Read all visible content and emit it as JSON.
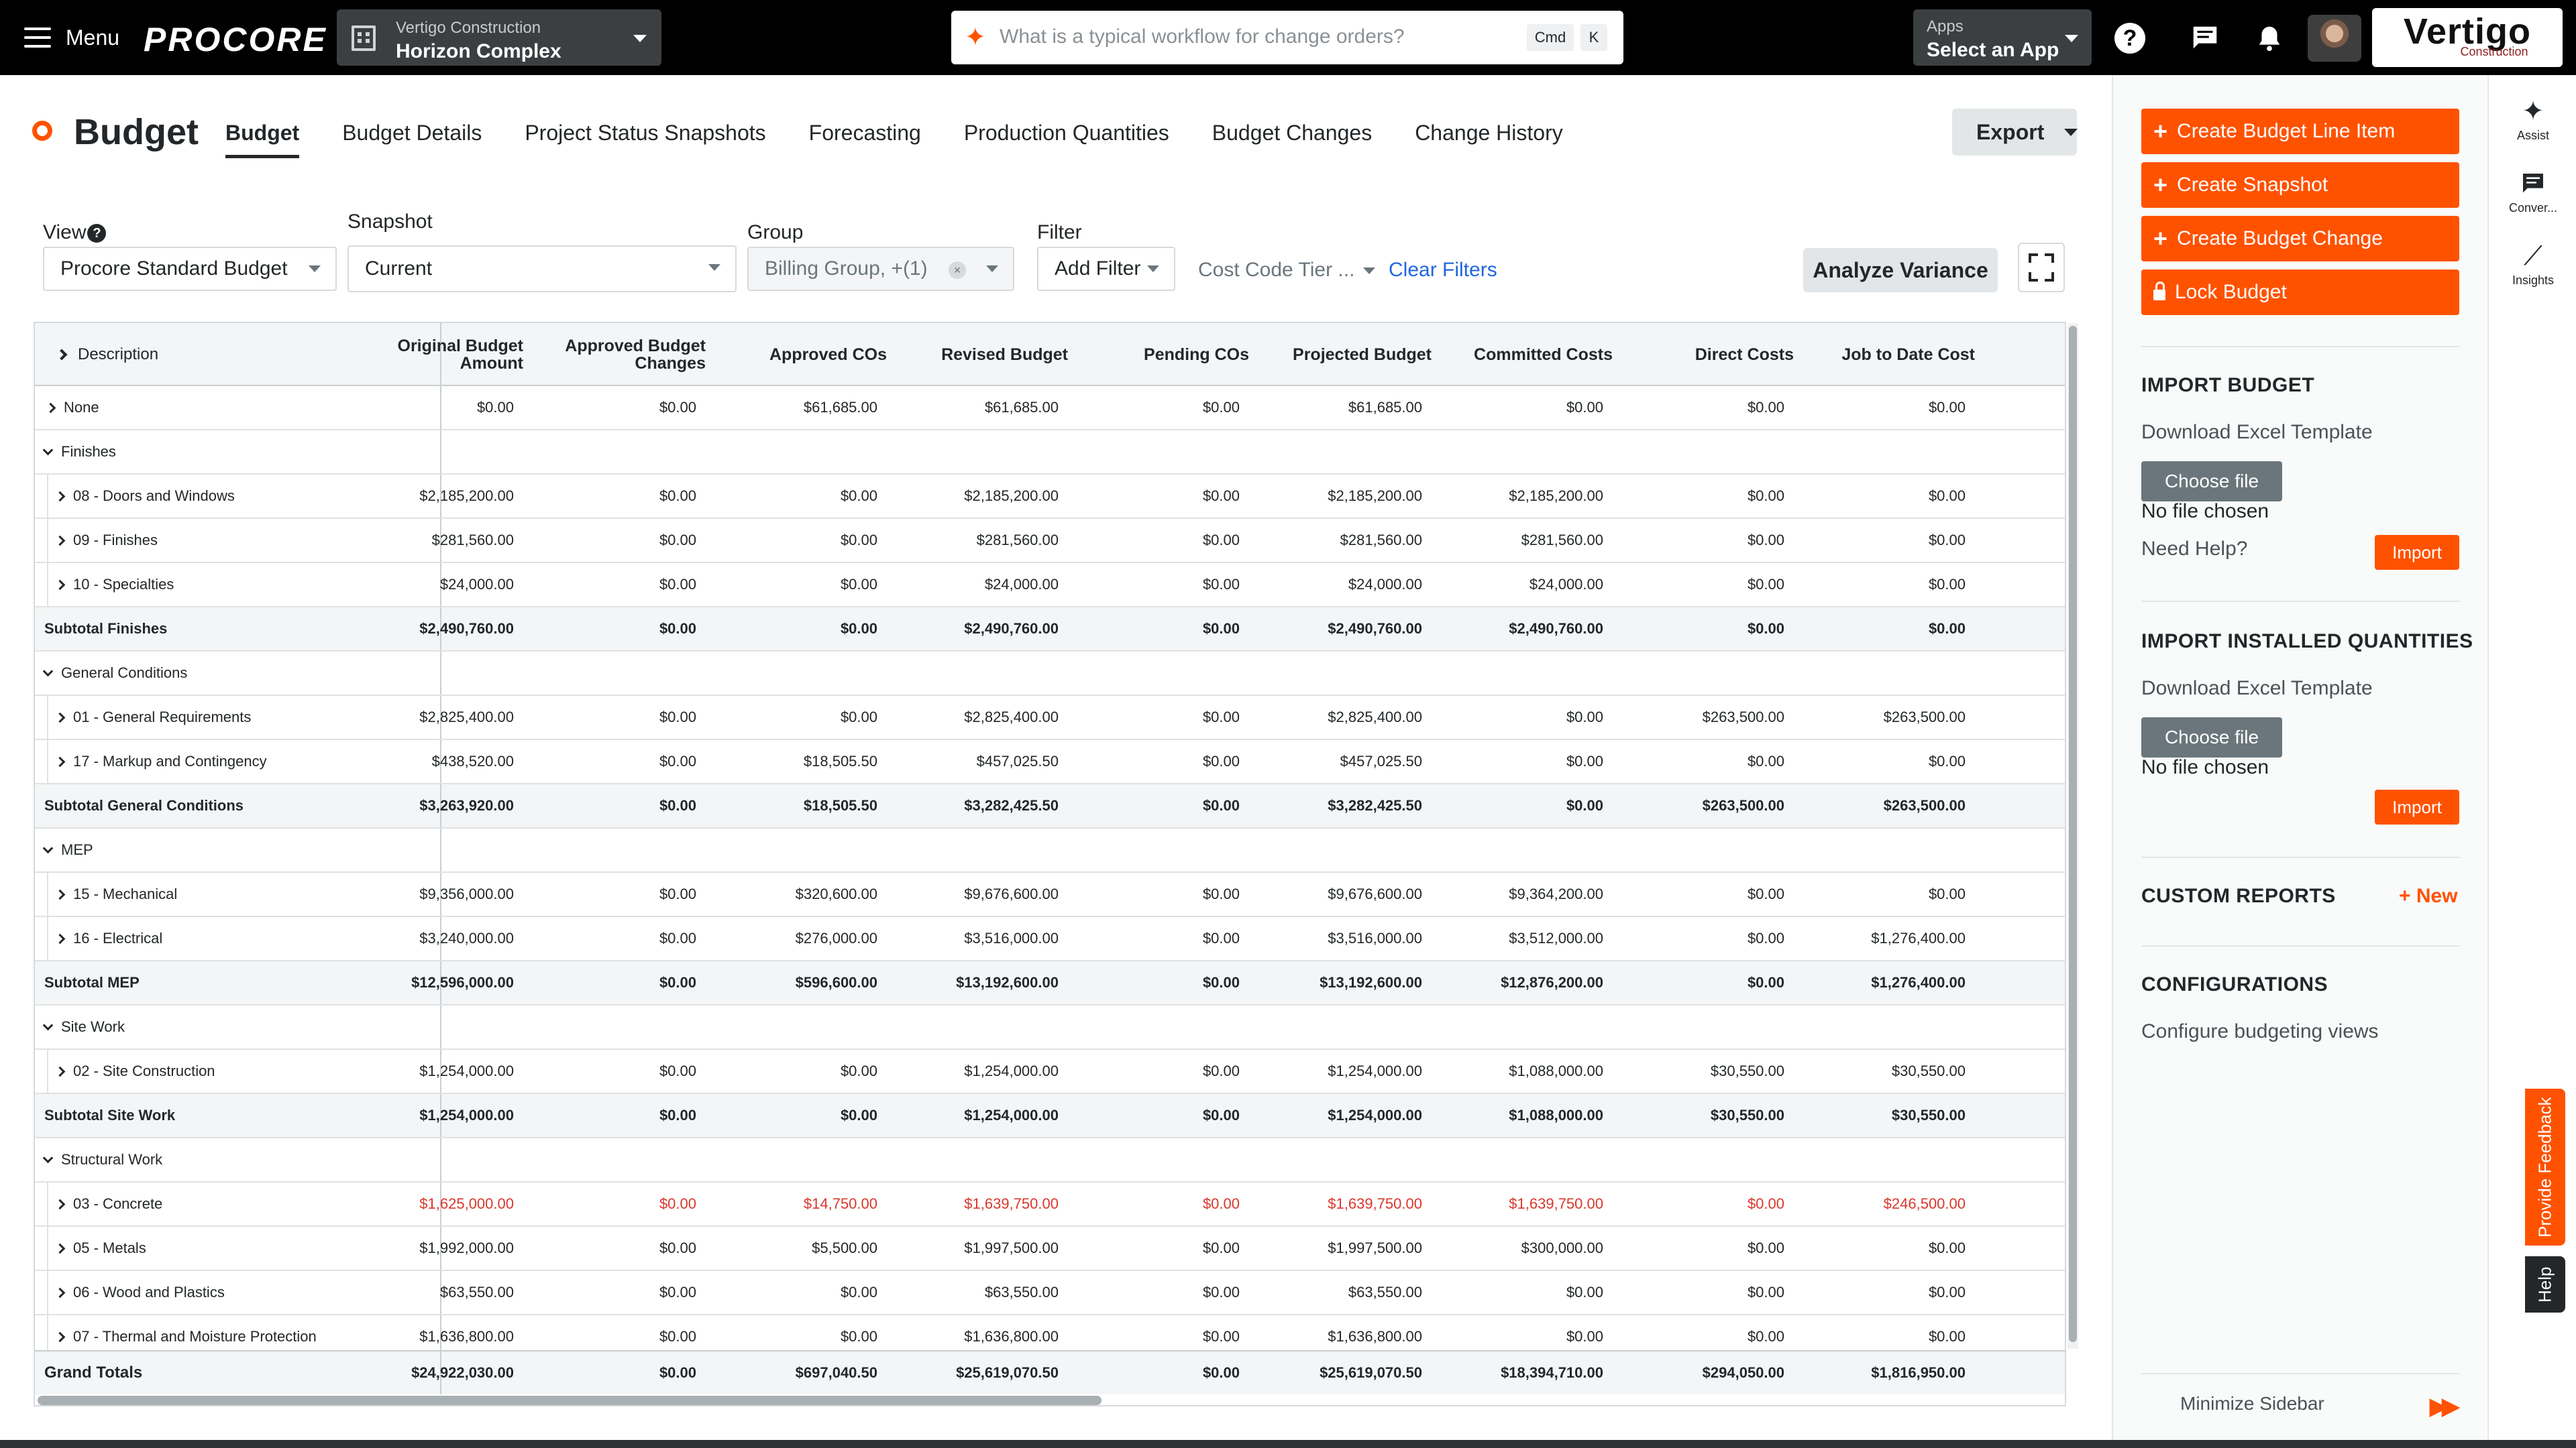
{
  "nav": {
    "menu_label": "Menu",
    "logo": "PROCORE",
    "company": "Vertigo Construction",
    "project": "Horizon Complex",
    "search_placeholder": "What is a typical workflow for change orders?",
    "kbd_cmd": "Cmd",
    "kbd_k": "K",
    "apps_label": "Apps",
    "apps_value": "Select an App",
    "company_logo_name": "Vertigo",
    "company_logo_sub": "Construction"
  },
  "header": {
    "title": "Budget",
    "tabs": [
      "Budget",
      "Budget Details",
      "Project Status Snapshots",
      "Forecasting",
      "Production Quantities",
      "Budget Changes",
      "Change History"
    ],
    "export_label": "Export"
  },
  "filters": {
    "view_label": "View",
    "view_value": "Procore Standard Budget",
    "snapshot_label": "Snapshot",
    "snapshot_value": "Current",
    "group_label": "Group",
    "group_value": "Billing Group, +(1)",
    "filter_label": "Filter",
    "filter_value": "Add Filter",
    "tier_value": "Cost Code Tier ...",
    "clear_filters": "Clear Filters",
    "analyze_label": "Analyze Variance"
  },
  "grid": {
    "desc_header": "Description",
    "columns": [
      {
        "l1": "Original Budget",
        "l2": "Amount"
      },
      {
        "l1": "Approved Budget",
        "l2": "Changes"
      },
      {
        "l1": "Approved COs",
        "l2": ""
      },
      {
        "l1": "Revised Budget",
        "l2": ""
      },
      {
        "l1": "Pending COs",
        "l2": ""
      },
      {
        "l1": "Projected Budget",
        "l2": ""
      },
      {
        "l1": "Committed Costs",
        "l2": ""
      },
      {
        "l1": "Direct Costs",
        "l2": ""
      },
      {
        "l1": "Job to Date Cost",
        "l2": ""
      }
    ],
    "rows": [
      {
        "type": "item-top",
        "label": "None",
        "values": [
          "$0.00",
          "$0.00",
          "$61,685.00",
          "$61,685.00",
          "$0.00",
          "$61,685.00",
          "$0.00",
          "$0.00",
          "$0.00"
        ]
      },
      {
        "type": "group",
        "label": "Finishes"
      },
      {
        "type": "item",
        "label": "08 - Doors and Windows",
        "values": [
          "$2,185,200.00",
          "$0.00",
          "$0.00",
          "$2,185,200.00",
          "$0.00",
          "$2,185,200.00",
          "$2,185,200.00",
          "$0.00",
          "$0.00"
        ]
      },
      {
        "type": "item",
        "label": "09 - Finishes",
        "values": [
          "$281,560.00",
          "$0.00",
          "$0.00",
          "$281,560.00",
          "$0.00",
          "$281,560.00",
          "$281,560.00",
          "$0.00",
          "$0.00"
        ]
      },
      {
        "type": "item",
        "label": "10 - Specialties",
        "values": [
          "$24,000.00",
          "$0.00",
          "$0.00",
          "$24,000.00",
          "$0.00",
          "$24,000.00",
          "$24,000.00",
          "$0.00",
          "$0.00"
        ]
      },
      {
        "type": "subtotal",
        "label": "Subtotal Finishes",
        "values": [
          "$2,490,760.00",
          "$0.00",
          "$0.00",
          "$2,490,760.00",
          "$0.00",
          "$2,490,760.00",
          "$2,490,760.00",
          "$0.00",
          "$0.00"
        ]
      },
      {
        "type": "group",
        "label": "General Conditions"
      },
      {
        "type": "item",
        "label": "01 - General Requirements",
        "values": [
          "$2,825,400.00",
          "$0.00",
          "$0.00",
          "$2,825,400.00",
          "$0.00",
          "$2,825,400.00",
          "$0.00",
          "$263,500.00",
          "$263,500.00"
        ]
      },
      {
        "type": "item",
        "label": "17 - Markup and Contingency",
        "values": [
          "$438,520.00",
          "$0.00",
          "$18,505.50",
          "$457,025.50",
          "$0.00",
          "$457,025.50",
          "$0.00",
          "$0.00",
          "$0.00"
        ]
      },
      {
        "type": "subtotal",
        "label": "Subtotal General Conditions",
        "values": [
          "$3,263,920.00",
          "$0.00",
          "$18,505.50",
          "$3,282,425.50",
          "$0.00",
          "$3,282,425.50",
          "$0.00",
          "$263,500.00",
          "$263,500.00"
        ]
      },
      {
        "type": "group",
        "label": "MEP"
      },
      {
        "type": "item",
        "label": "15 - Mechanical",
        "values": [
          "$9,356,000.00",
          "$0.00",
          "$320,600.00",
          "$9,676,600.00",
          "$0.00",
          "$9,676,600.00",
          "$9,364,200.00",
          "$0.00",
          "$0.00"
        ]
      },
      {
        "type": "item",
        "label": "16 - Electrical",
        "values": [
          "$3,240,000.00",
          "$0.00",
          "$276,000.00",
          "$3,516,000.00",
          "$0.00",
          "$3,516,000.00",
          "$3,512,000.00",
          "$0.00",
          "$1,276,400.00"
        ]
      },
      {
        "type": "subtotal",
        "label": "Subtotal MEP",
        "values": [
          "$12,596,000.00",
          "$0.00",
          "$596,600.00",
          "$13,192,600.00",
          "$0.00",
          "$13,192,600.00",
          "$12,876,200.00",
          "$0.00",
          "$1,276,400.00"
        ]
      },
      {
        "type": "group",
        "label": "Site Work"
      },
      {
        "type": "item",
        "label": "02 - Site Construction",
        "values": [
          "$1,254,000.00",
          "$0.00",
          "$0.00",
          "$1,254,000.00",
          "$0.00",
          "$1,254,000.00",
          "$1,088,000.00",
          "$30,550.00",
          "$30,550.00"
        ]
      },
      {
        "type": "subtotal",
        "label": "Subtotal Site Work",
        "values": [
          "$1,254,000.00",
          "$0.00",
          "$0.00",
          "$1,254,000.00",
          "$0.00",
          "$1,254,000.00",
          "$1,088,000.00",
          "$30,550.00",
          "$30,550.00"
        ]
      },
      {
        "type": "group",
        "label": "Structural Work"
      },
      {
        "type": "item",
        "red": true,
        "label": "03 - Concrete",
        "values": [
          "$1,625,000.00",
          "$0.00",
          "$14,750.00",
          "$1,639,750.00",
          "$0.00",
          "$1,639,750.00",
          "$1,639,750.00",
          "$0.00",
          "$246,500.00"
        ]
      },
      {
        "type": "item",
        "label": "05 - Metals",
        "values": [
          "$1,992,000.00",
          "$0.00",
          "$5,500.00",
          "$1,997,500.00",
          "$0.00",
          "$1,997,500.00",
          "$300,000.00",
          "$0.00",
          "$0.00"
        ]
      },
      {
        "type": "item",
        "label": "06 - Wood and Plastics",
        "values": [
          "$63,550.00",
          "$0.00",
          "$0.00",
          "$63,550.00",
          "$0.00",
          "$63,550.00",
          "$0.00",
          "$0.00",
          "$0.00"
        ]
      },
      {
        "type": "item",
        "label": "07 - Thermal and Moisture Protection",
        "values": [
          "$1,636,800.00",
          "$0.00",
          "$0.00",
          "$1,636,800.00",
          "$0.00",
          "$1,636,800.00",
          "$0.00",
          "$0.00",
          "$0.00"
        ]
      }
    ],
    "grand_totals": {
      "label": "Grand Totals",
      "values": [
        "$24,922,030.00",
        "$0.00",
        "$697,040.50",
        "$25,619,070.50",
        "$0.00",
        "$25,619,070.50",
        "$18,394,710.00",
        "$294,050.00",
        "$1,816,950.00"
      ]
    }
  },
  "sidebar": {
    "actions": [
      "Create Budget Line Item",
      "Create Snapshot",
      "Create Budget Change",
      "Lock Budget"
    ],
    "import_budget": {
      "heading": "IMPORT BUDGET",
      "template_link": "Download Excel Template",
      "choose_file": "Choose file",
      "no_file": "No file chosen",
      "need_help": "Need Help?",
      "import": "Import"
    },
    "import_quantities": {
      "heading": "IMPORT INSTALLED QUANTITIES",
      "template_link": "Download Excel Template",
      "choose_file": "Choose file",
      "no_file": "No file chosen",
      "import": "Import"
    },
    "custom_reports": {
      "heading": "CUSTOM REPORTS",
      "new": "+ New"
    },
    "configurations": {
      "heading": "CONFIGURATIONS",
      "link": "Configure budgeting views"
    },
    "minimize": "Minimize Sidebar"
  },
  "rail": {
    "assist": "Assist",
    "conversations": "Conver...",
    "insights": "Insights",
    "feedback": "Provide Feedback",
    "help": "Help"
  },
  "colors": {
    "accent": "#ff5200",
    "link": "#2066df",
    "negative": "#d9372c"
  }
}
